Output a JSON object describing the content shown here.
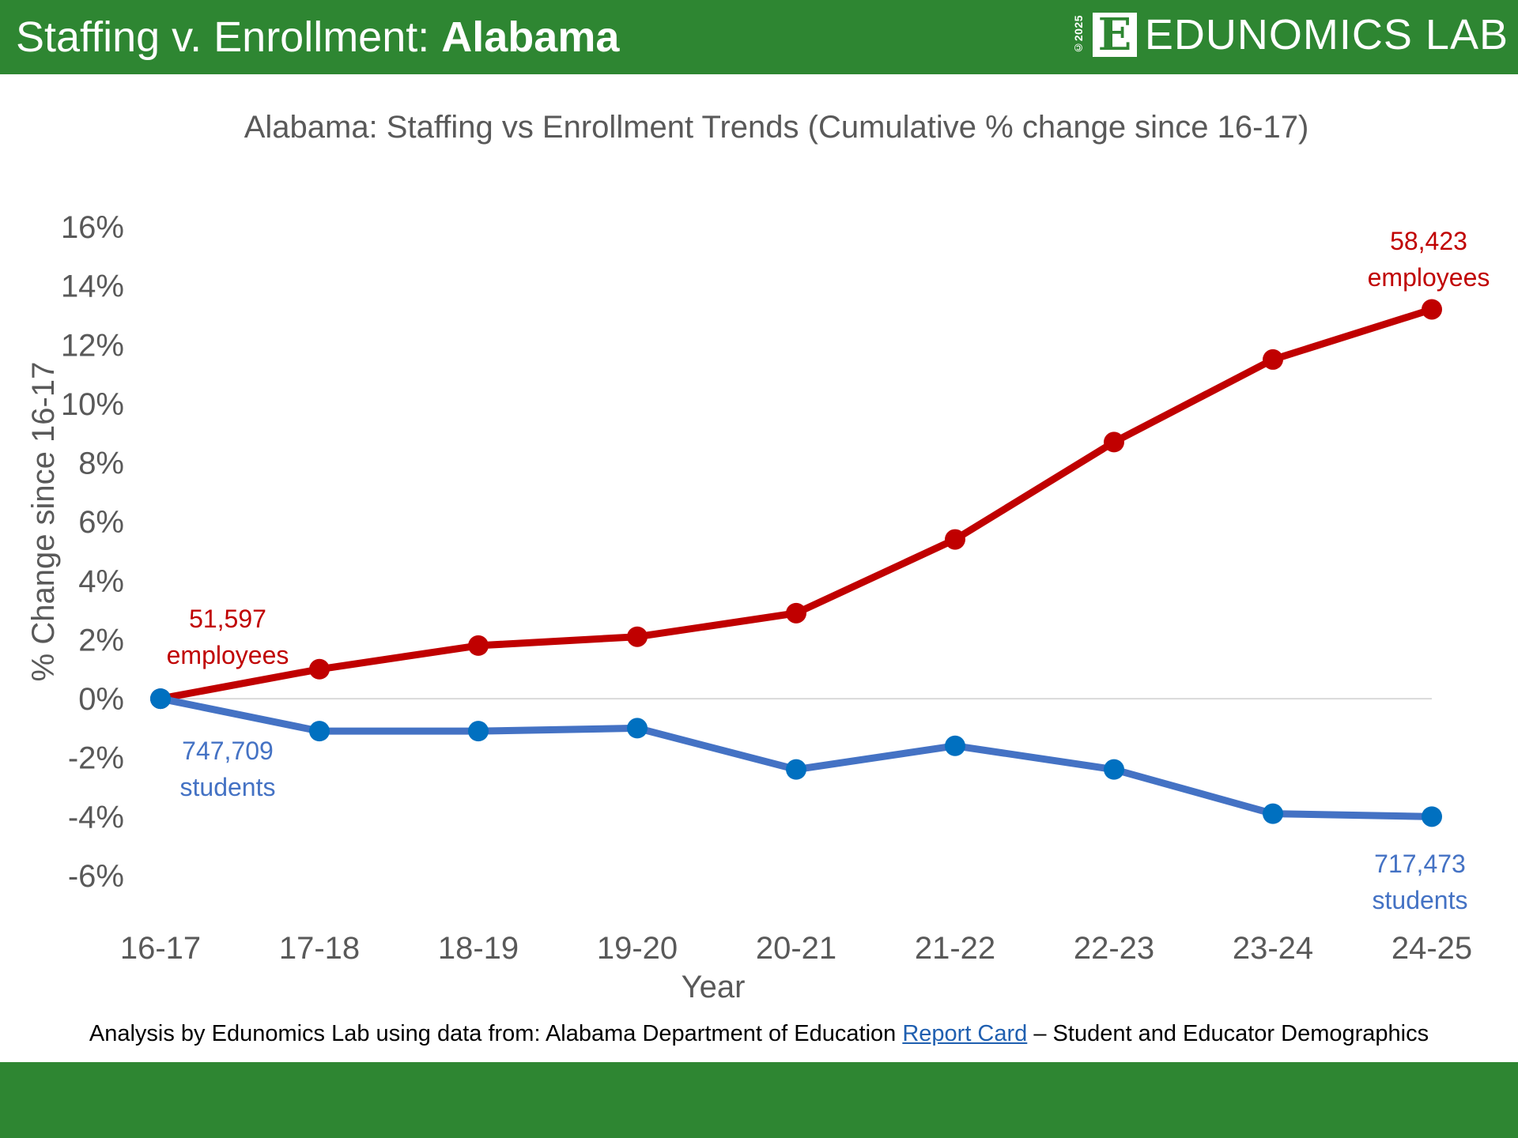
{
  "header": {
    "title_prefix": "Staffing v. Enrollment: ",
    "title_state": "Alabama",
    "logo_copyright": "©2025",
    "logo_letter": "E",
    "logo_text": "EDUNOMICS LAB"
  },
  "footer": {
    "source_prefix": "Analysis by Edunomics Lab using data from: Alabama Department of Education ",
    "source_link": "Report Card",
    "source_suffix": " – Student and Educator Demographics"
  },
  "colors": {
    "brand_green": "#2e8632",
    "staff_red": "#c00000",
    "student_blue_line": "#4472c4",
    "student_blue_marker": "#0070c0",
    "axis_text": "#595959",
    "link_blue": "#1f5fb0"
  },
  "chart_data": {
    "type": "line",
    "title": "Alabama: Staffing vs Enrollment Trends (Cumulative % change since 16-17)",
    "xlabel": "Year",
    "ylabel": "% Change since 16-17",
    "categories": [
      "16-17",
      "17-18",
      "18-19",
      "19-20",
      "20-21",
      "21-22",
      "22-23",
      "23-24",
      "24-25"
    ],
    "ylim": [
      -6,
      16
    ],
    "yticks": [
      16,
      14,
      12,
      10,
      8,
      6,
      4,
      2,
      0,
      -2,
      -4,
      -6
    ],
    "ytick_labels": [
      "16%",
      "14%",
      "12%",
      "10%",
      "8%",
      "6%",
      "4%",
      "2%",
      "0%",
      "-2%",
      "-4%",
      "-6%"
    ],
    "grid": "zero line only",
    "legend": "none",
    "series": [
      {
        "name": "Employees",
        "color": "#c00000",
        "values": [
          0,
          1.0,
          1.8,
          2.1,
          2.9,
          5.4,
          8.7,
          11.5,
          13.2
        ]
      },
      {
        "name": "Students",
        "color": "#4472c4",
        "values": [
          0,
          -1.1,
          -1.1,
          -1.0,
          -2.4,
          -1.6,
          -2.4,
          -3.9,
          -4.0
        ]
      }
    ],
    "annotations": [
      {
        "series": "Employees",
        "at": "16-17",
        "line1": "51,597",
        "line2": "employees"
      },
      {
        "series": "Employees",
        "at": "24-25",
        "line1": "58,423",
        "line2": "employees"
      },
      {
        "series": "Students",
        "at": "16-17",
        "line1": "747,709",
        "line2": "students"
      },
      {
        "series": "Students",
        "at": "24-25",
        "line1": "717,473",
        "line2": "students"
      }
    ]
  }
}
